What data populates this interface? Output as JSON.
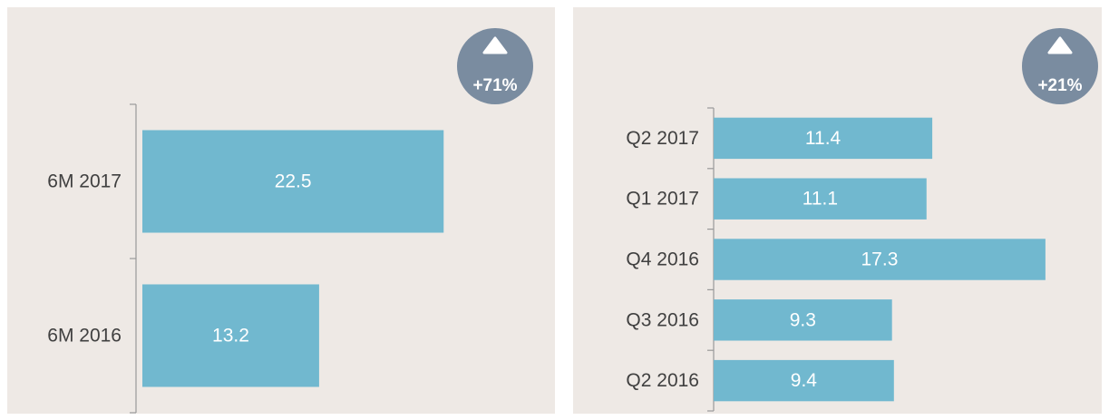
{
  "chart_data": [
    {
      "type": "bar",
      "orientation": "horizontal",
      "categories": [
        "6M 2017",
        "6M 2016"
      ],
      "values": [
        22.5,
        13.2
      ],
      "color": "#71b8cf",
      "xlim": [
        0,
        30
      ],
      "annotation": "+71%"
    },
    {
      "type": "bar",
      "orientation": "horizontal",
      "categories": [
        "Q2 2017",
        "Q1 2017",
        "Q4 2016",
        "Q3 2016",
        "Q2 2016"
      ],
      "values": [
        11.4,
        11.1,
        17.3,
        9.3,
        9.4
      ],
      "color": "#71b8cf",
      "xlim": [
        0,
        20
      ],
      "annotation": "+21%"
    }
  ]
}
